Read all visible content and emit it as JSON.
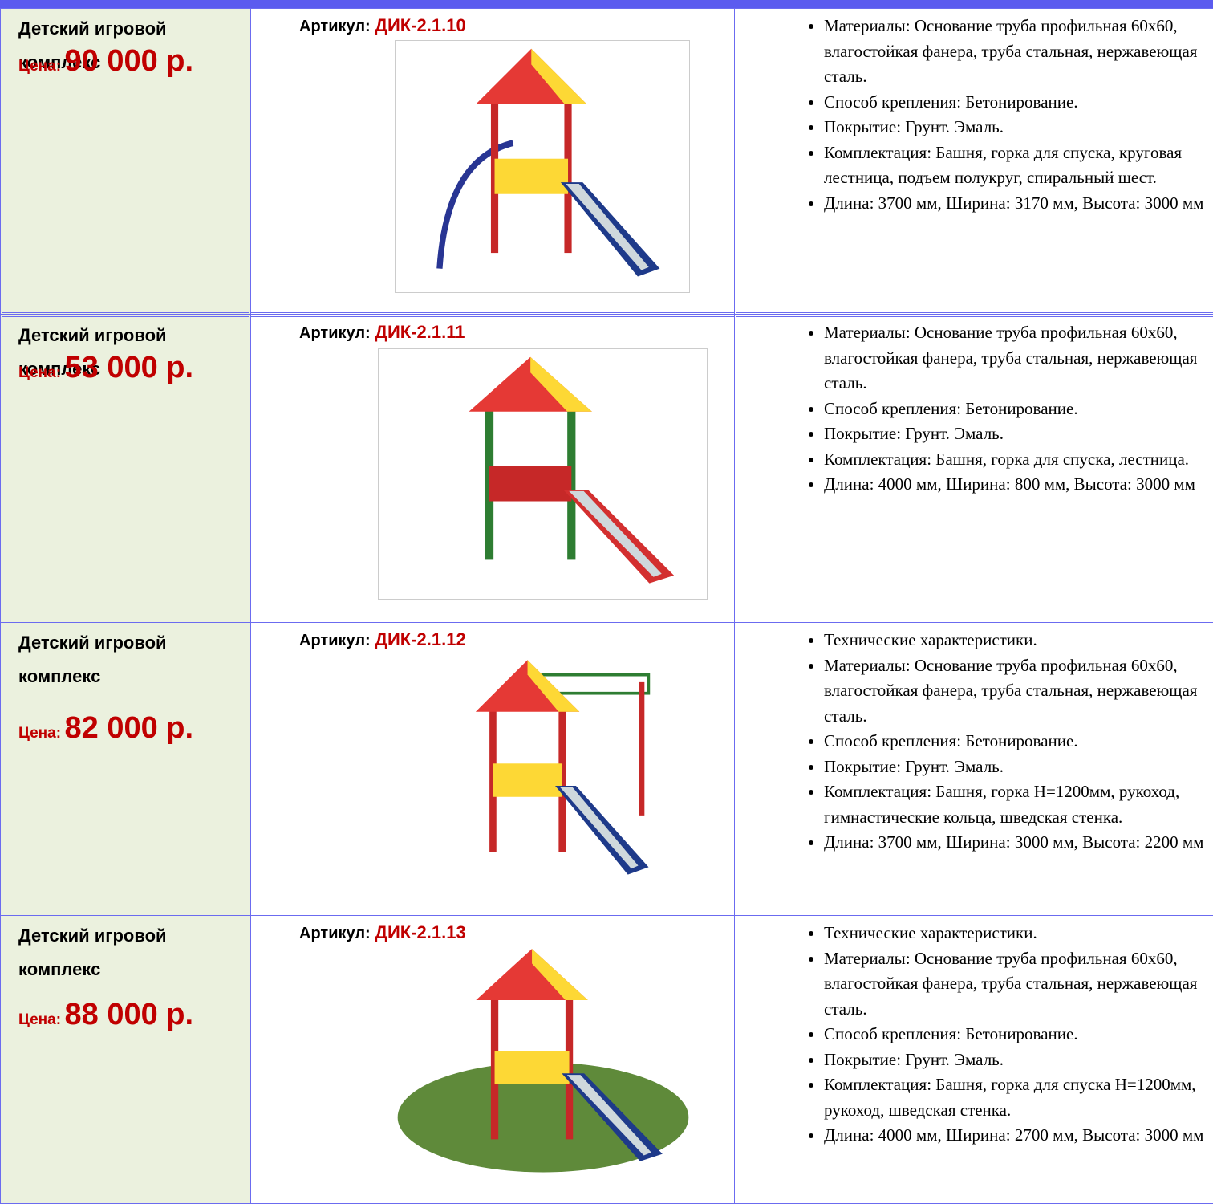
{
  "table": {
    "rows": [
      {
        "name": "Детский игровой комплекс",
        "price_label": "Цена:",
        "price": "90 000 р.",
        "article_label": "Артикул:",
        "article": "ДИК-2.1.10",
        "specs": [
          "Материалы: Основание труба профильная 60х60, влагостойкая фанера, труба стальная, нержавеющая сталь.",
          "Способ крепления: Бетонирование.",
          "Покрытие: Грунт. Эмаль.",
          "Комплектация: Башня, горка для спуска, круговая лестница, подъем полукруг, спиральный шест.",
          "Длина: 3700 мм, Ширина: 3170 мм, Высота: 3000 мм"
        ]
      },
      {
        "name": "Детский игровой комплекс",
        "price_label": "Цена:",
        "price": "53 000 р.",
        "article_label": "Артикул:",
        "article": "ДИК-2.1.11",
        "specs": [
          "Материалы: Основание труба профильная 60х60, влагостойкая фанера, труба стальная, нержавеющая сталь.",
          "Способ крепления: Бетонирование.",
          "Покрытие: Грунт. Эмаль.",
          "Комплектация: Башня, горка для спуска, лестница.",
          "Длина: 4000 мм, Ширина: 800 мм, Высота: 3000 мм"
        ]
      },
      {
        "name": "Детский игровой комплекс",
        "price_label": "Цена:",
        "price": "82 000 р.",
        "article_label": "Артикул:",
        "article": "ДИК-2.1.12",
        "specs": [
          "Технические характеристики.",
          "Материалы: Основание труба профильная 60х60, влагостойкая фанера, труба стальная, нержавеющая сталь.",
          "Способ крепления: Бетонирование.",
          "Покрытие: Грунт. Эмаль.",
          "Комплектация: Башня, горка Н=1200мм, рукоход, гимнастические кольца, шведская стенка.",
          "Длина: 3700 мм, Ширина: 3000 мм, Высота: 2200 мм"
        ]
      },
      {
        "name": "Детский игровой комплекс",
        "price_label": "Цена:",
        "price": "88 000 р.",
        "article_label": "Артикул:",
        "article": "ДИК-2.1.13",
        "specs": [
          "Технические характеристики.",
          "Материалы: Основание труба профильная 60х60, влагостойкая фанера, труба стальная, нержавеющая сталь.",
          "Способ крепления: Бетонирование.",
          "Покрытие: Грунт. Эмаль.",
          "Комплектация: Башня, горка для спуска Н=1200мм, рукоход, шведская стенка.",
          "Длина: 4000 мм, Ширина: 2700 мм, Высота: 3000 мм"
        ]
      }
    ]
  }
}
